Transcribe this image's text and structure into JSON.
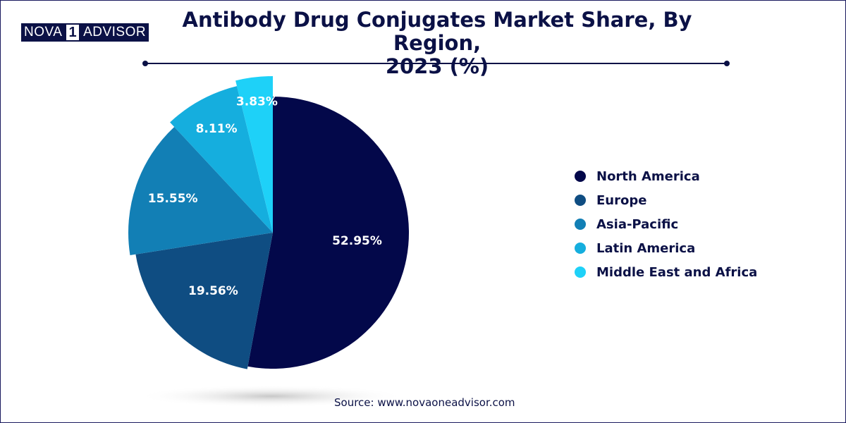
{
  "logo": {
    "word1": "NOVA",
    "num": "1",
    "word2": "ADVISOR"
  },
  "header": {
    "title_line1": "Antibody Drug Conjugates Market Share, By Region,",
    "title_line2": "2023 (%)"
  },
  "chart_data": {
    "type": "pie",
    "title": "Antibody Drug Conjugates Market Share, By Region, 2023 (%)",
    "categories": [
      "North America",
      "Europe",
      "Asia-Pacific",
      "Latin America",
      "Middle East and Africa"
    ],
    "values": [
      52.95,
      19.56,
      15.55,
      8.11,
      3.83
    ],
    "labels": [
      "52.95%",
      "19.56%",
      "15.55%",
      "8.11%",
      "3.83%"
    ],
    "colors": [
      "#03084a",
      "#0f4d82",
      "#127fb5",
      "#15aede",
      "#1ed1f8"
    ],
    "legend": "right",
    "start": "12 o'clock, clockwise; slices exploded with increasing radius"
  },
  "source": "Source: www.novaoneadvisor.com"
}
